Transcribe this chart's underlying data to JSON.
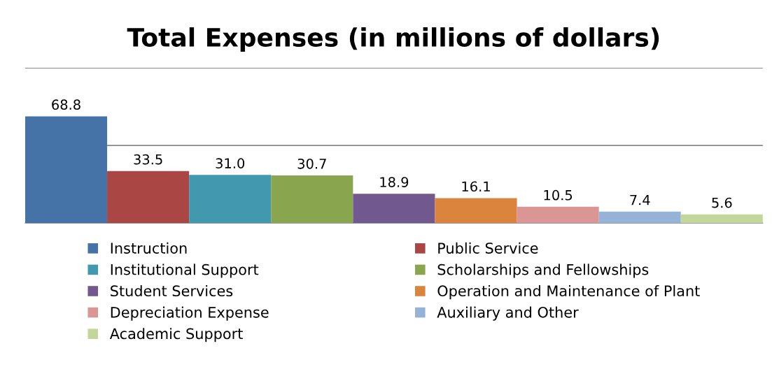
{
  "chart_data": {
    "type": "bar",
    "title": "Total Expenses (in millions of dollars)",
    "categories": [
      null
    ],
    "series": [
      {
        "name": "Instruction",
        "color": "#4572a7",
        "values": [
          68.8
        ]
      },
      {
        "name": "Public Service",
        "color": "#aa4643",
        "values": [
          33.5
        ]
      },
      {
        "name": "Institutional Support",
        "color": "#4198af",
        "values": [
          31.0
        ],
        "value_labels": [
          "31.0"
        ]
      },
      {
        "name": "Scholarships and Fellowships",
        "color": "#89a54e",
        "values": [
          30.7
        ]
      },
      {
        "name": "Student Services",
        "color": "#71588f",
        "values": [
          18.9
        ]
      },
      {
        "name": "Operation and Maintenance of Plant",
        "color": "#db843d",
        "values": [
          16.1
        ]
      },
      {
        "name": "Depreciation Expense",
        "color": "#d99694",
        "values": [
          10.5
        ]
      },
      {
        "name": "Auxiliary and Other",
        "color": "#95b3d7",
        "values": [
          7.4
        ]
      },
      {
        "name": "Academic Support",
        "color": "#c3d69b",
        "values": [
          5.6
        ]
      }
    ],
    "ylim": [
      0,
      100
    ],
    "yticks": [
      {
        "value": 0,
        "label": null
      },
      {
        "value": 50,
        "label": null
      },
      {
        "value": 100,
        "label": null
      }
    ],
    "grid": "y",
    "legend": "bottom",
    "data_labels": true
  }
}
